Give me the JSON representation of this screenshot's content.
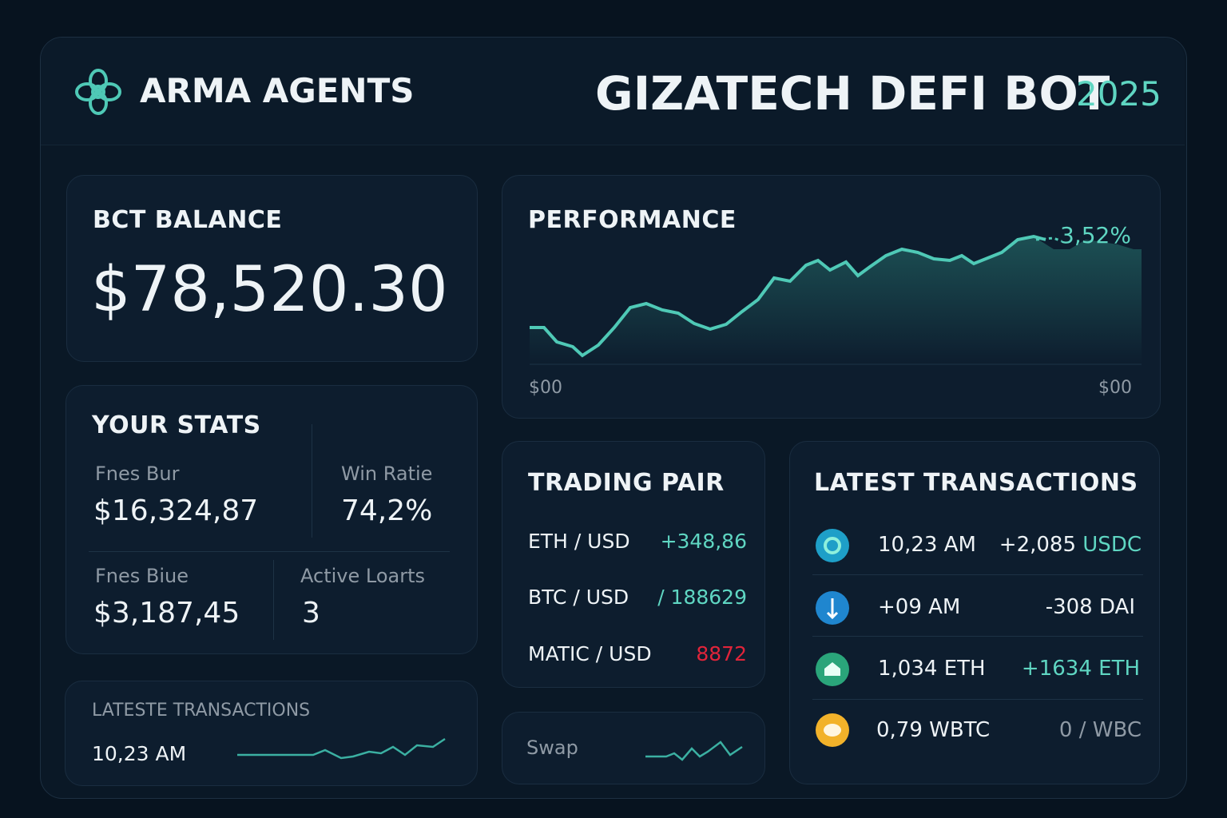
{
  "header": {
    "brand": "ARMA AGENTS",
    "title": "GIZATECH DEFI BOT",
    "year": "2025"
  },
  "balance": {
    "label": "BCT BALANCE",
    "value": "$78,520.30"
  },
  "performance": {
    "title": "PERFORMANCE",
    "change": "3,52%",
    "axis_left": "$00",
    "axis_right": "$00"
  },
  "stats": {
    "title": "YOUR STATS",
    "items": [
      {
        "label": "Fnes Bur",
        "value": "$16,324,87"
      },
      {
        "label": "Win Ratie",
        "value": "74,2%"
      },
      {
        "label": "Fnes Biue",
        "value": "$3,187,45"
      },
      {
        "label": "Active Loarts",
        "value": "3"
      }
    ]
  },
  "mini_transactions": {
    "title": "LATESTE TRANSACTIONS",
    "time": "10,23 AM"
  },
  "trading_pairs": {
    "title": "TRADING PAIR",
    "rows": [
      {
        "pair": "ETH / USD",
        "value": "+348,86"
      },
      {
        "pair": "BTC / USD",
        "value": "/ 188629"
      },
      {
        "pair": "MATIC / USD",
        "value": "8872"
      }
    ]
  },
  "swap": {
    "label": "Swap"
  },
  "transactions": {
    "title": "LATEST TRANSACTIONS",
    "rows": [
      {
        "time": "10,23 AM",
        "amount": "+2,085",
        "token": "USDC"
      },
      {
        "time": "+09 AM",
        "amount": "-308 DAI"
      },
      {
        "time": "1,034 ETH",
        "amount": "+1634 ETH"
      },
      {
        "time": "0,79 WBTC",
        "amount": "0 / WBC"
      }
    ]
  }
}
